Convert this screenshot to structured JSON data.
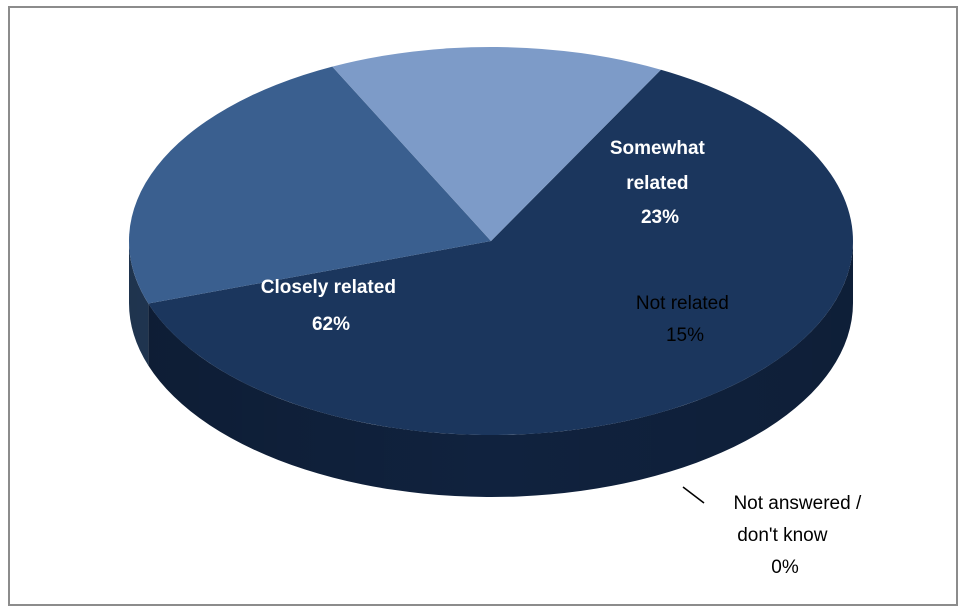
{
  "chart_data": {
    "type": "pie",
    "title": "",
    "three_d": true,
    "slices": [
      {
        "label": "Closely related",
        "value": 62,
        "value_label": "62%",
        "color": "#1b365d",
        "side_color": "#10223e"
      },
      {
        "label": "Somewhat related",
        "value": 23,
        "value_label": "23%",
        "color": "#3a5f8f",
        "side_color": "#243d5c"
      },
      {
        "label": "Not related",
        "value": 15,
        "value_label": "15%",
        "color": "#7d9bc8",
        "side_color": "#323c4f"
      },
      {
        "label": "Not answered / don't know",
        "value": 0,
        "value_label": "0%",
        "color": "#5b5b5b",
        "side_color": "#3b3b3b"
      }
    ],
    "labels": {
      "closely": {
        "lines": [
          "Closely related",
          "62%"
        ]
      },
      "somewhat": {
        "lines": [
          "Somewhat",
          "related",
          "23%"
        ]
      },
      "not_related": {
        "lines": [
          "Not related",
          "15%"
        ]
      },
      "not_answered": {
        "lines": [
          "Not answered /",
          "don't know",
          "0%"
        ]
      }
    },
    "legend": "none",
    "grid": false
  }
}
